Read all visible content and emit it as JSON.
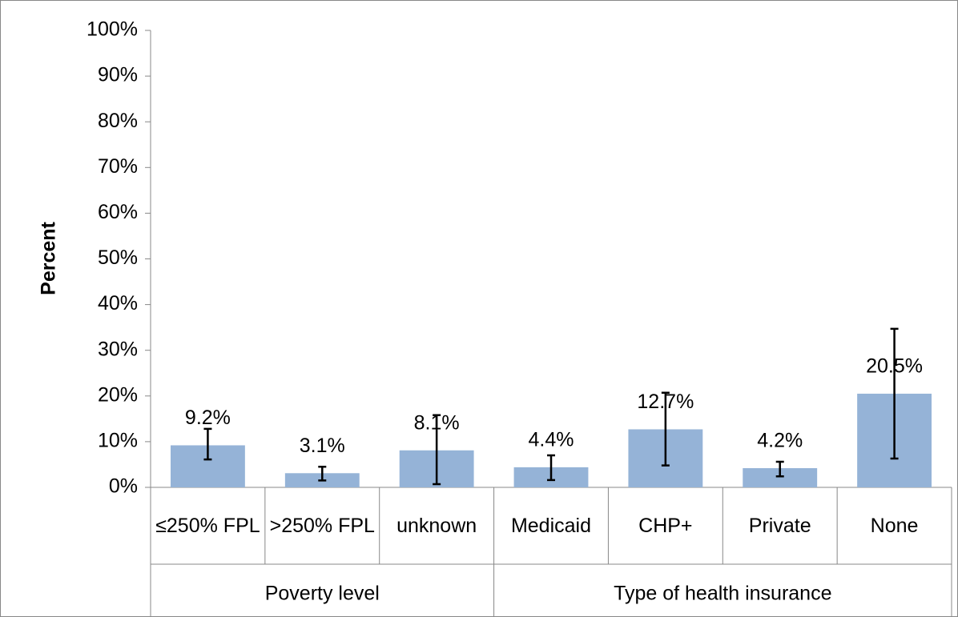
{
  "chart_data": {
    "type": "bar",
    "y_label": "Percent",
    "categories": [
      "≤250% FPL",
      ">250% FPL",
      "unknown",
      "Medicaid",
      "CHP+",
      "Private",
      "None"
    ],
    "groups": [
      {
        "label": "Poverty level",
        "size": 3
      },
      {
        "label": "Type of health insurance",
        "size": 4
      }
    ],
    "values": [
      9.2,
      3.1,
      8.1,
      4.4,
      12.7,
      4.2,
      20.5
    ],
    "value_labels": [
      "9.2%",
      "3.1%",
      "8.1%",
      "4.4%",
      "12.7%",
      "4.2%",
      "20.5%"
    ],
    "error_low": [
      6.1,
      1.5,
      0.7,
      1.6,
      4.8,
      2.4,
      6.3
    ],
    "error_high": [
      12.8,
      4.5,
      15.8,
      7.0,
      20.7,
      5.6,
      34.7
    ],
    "color": "#95b3d7",
    "ylim": [
      0,
      100
    ],
    "yticks": [
      {
        "value": 0,
        "label": "0%"
      },
      {
        "value": 10,
        "label": "10%"
      },
      {
        "value": 20,
        "label": "20%"
      },
      {
        "value": 30,
        "label": "30%"
      },
      {
        "value": 40,
        "label": "40%"
      },
      {
        "value": 50,
        "label": "50%"
      },
      {
        "value": 60,
        "label": "60%"
      },
      {
        "value": 70,
        "label": "70%"
      },
      {
        "value": 80,
        "label": "80%"
      },
      {
        "value": 90,
        "label": "90%"
      },
      {
        "value": 100,
        "label": "100%"
      }
    ],
    "grid": false
  }
}
